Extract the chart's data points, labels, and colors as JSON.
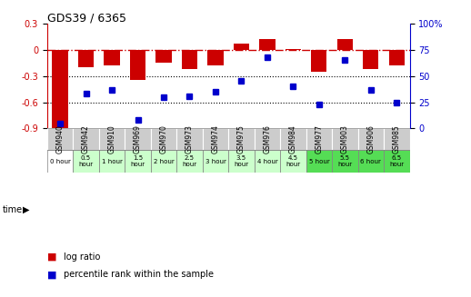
{
  "title": "GDS39 / 6365",
  "samples": [
    "GSM940",
    "GSM942",
    "GSM910",
    "GSM969",
    "GSM970",
    "GSM973",
    "GSM974",
    "GSM975",
    "GSM976",
    "GSM984",
    "GSM977",
    "GSM903",
    "GSM906",
    "GSM985"
  ],
  "time_labels": [
    "0 hour",
    "0.5\nhour",
    "1 hour",
    "1.5\nhour",
    "2 hour",
    "2.5\nhour",
    "3 hour",
    "3.5\nhour",
    "4 hour",
    "4.5\nhour",
    "5 hour",
    "5.5\nhour",
    "6 hour",
    "6.5\nhour"
  ],
  "log_ratio": [
    -0.9,
    -0.2,
    -0.18,
    -0.34,
    -0.15,
    -0.22,
    -0.18,
    0.07,
    0.12,
    0.01,
    -0.25,
    0.12,
    -0.22,
    -0.18
  ],
  "percentile": [
    5,
    33,
    37,
    8,
    30,
    31,
    35,
    45,
    68,
    40,
    23,
    65,
    37,
    25
  ],
  "bar_color": "#cc0000",
  "dot_color": "#0000cc",
  "bg_color": "#ffffff",
  "dashed_line_color": "#cc0000",
  "ylim_left": [
    -0.9,
    0.3
  ],
  "ylim_right": [
    0,
    100
  ],
  "yticks_left": [
    -0.9,
    -0.6,
    -0.3,
    0,
    0.3
  ],
  "yticks_right": [
    0,
    25,
    50,
    75,
    100
  ],
  "header_bg": "#cccccc",
  "time_colors": [
    "#ffffff",
    "#ccffcc",
    "#ccffcc",
    "#ccffcc",
    "#ccffcc",
    "#ccffcc",
    "#ccffcc",
    "#ccffcc",
    "#ccffcc",
    "#ccffcc",
    "#55dd55",
    "#55dd55",
    "#55dd55",
    "#55dd55"
  ]
}
